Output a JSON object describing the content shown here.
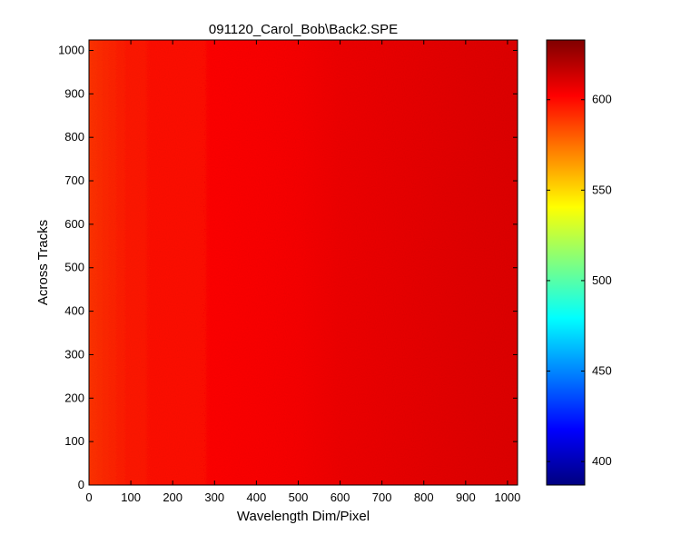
{
  "chart_data": {
    "type": "heatmap",
    "title": "091120_Carol_Bob\\Back2.SPE",
    "xlabel": "Wavelength Dim/Pixel",
    "ylabel": "Across Tracks",
    "xlim": [
      0,
      1024
    ],
    "ylim": [
      0,
      1024
    ],
    "x_ticks": [
      0,
      100,
      200,
      300,
      400,
      500,
      600,
      700,
      800,
      900,
      1000
    ],
    "y_ticks": [
      0,
      100,
      200,
      300,
      400,
      500,
      600,
      700,
      800,
      900,
      1000
    ],
    "colormap": "jet",
    "color_range": [
      387,
      633
    ],
    "colorbar_ticks": [
      400,
      450,
      500,
      550,
      600
    ],
    "grid": false,
    "profile_x": [
      0,
      100,
      200,
      300,
      400,
      500,
      600,
      700,
      800,
      900,
      1024
    ],
    "profile_values": [
      590,
      597,
      599,
      601,
      603,
      604,
      606,
      607,
      608,
      609,
      610
    ]
  }
}
